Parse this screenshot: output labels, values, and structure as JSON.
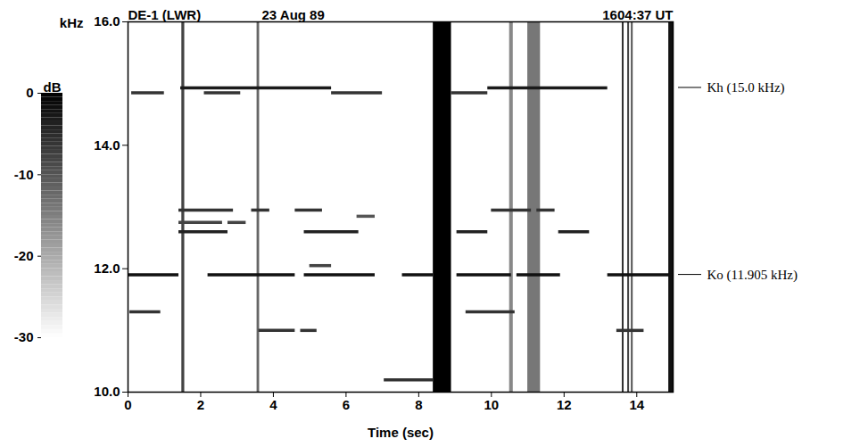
{
  "chart_data": {
    "type": "spectrogram",
    "title": "DE-1 (LWR)",
    "date": "23 Aug 89",
    "time": "1604:37 UT",
    "x_label": "Time (sec)",
    "y_label": "kHz",
    "xlim": [
      0,
      15
    ],
    "xticks": [
      0,
      2,
      4,
      6,
      8,
      10,
      12,
      14
    ],
    "ylim": [
      10,
      16
    ],
    "yticks": [
      {
        "value": 10,
        "label": "10.0"
      },
      {
        "value": 12,
        "label": "12.0"
      },
      {
        "value": 14,
        "label": "14.0"
      },
      {
        "value": 16,
        "label": "16.0"
      }
    ],
    "tones": [
      {
        "x0": 1.45,
        "x1": 5.6,
        "y": 14.93,
        "level": -3
      },
      {
        "x0": 9.9,
        "x1": 13.2,
        "y": 14.93,
        "level": -3
      },
      {
        "x0": 0.1,
        "x1": 1.0,
        "y": 14.85,
        "level": -6
      },
      {
        "x0": 2.1,
        "x1": 3.1,
        "y": 14.85,
        "level": -6
      },
      {
        "x0": 5.6,
        "x1": 7.0,
        "y": 14.85,
        "level": -6
      },
      {
        "x0": 8.9,
        "x1": 9.9,
        "y": 14.85,
        "level": -6
      },
      {
        "x0": 1.4,
        "x1": 2.9,
        "y": 12.95,
        "level": -6
      },
      {
        "x0": 3.4,
        "x1": 3.9,
        "y": 12.95,
        "level": -6
      },
      {
        "x0": 4.6,
        "x1": 5.35,
        "y": 12.95,
        "level": -6
      },
      {
        "x0": 10.0,
        "x1": 11.1,
        "y": 12.95,
        "level": -6
      },
      {
        "x0": 11.25,
        "x1": 11.75,
        "y": 12.95,
        "level": -6
      },
      {
        "x0": 6.3,
        "x1": 6.8,
        "y": 12.85,
        "level": -10
      },
      {
        "x0": 1.4,
        "x1": 2.6,
        "y": 12.75,
        "level": -8
      },
      {
        "x0": 2.75,
        "x1": 3.25,
        "y": 12.75,
        "level": -8
      },
      {
        "x0": 1.4,
        "x1": 2.75,
        "y": 12.6,
        "level": -4
      },
      {
        "x0": 4.85,
        "x1": 6.35,
        "y": 12.6,
        "level": -4
      },
      {
        "x0": 9.05,
        "x1": 9.9,
        "y": 12.6,
        "level": -4
      },
      {
        "x0": 11.85,
        "x1": 12.7,
        "y": 12.6,
        "level": -4
      },
      {
        "x0": 5.0,
        "x1": 5.6,
        "y": 12.05,
        "level": -8
      },
      {
        "x0": 0,
        "x1": 1.4,
        "y": 11.9,
        "level": -2
      },
      {
        "x0": 2.2,
        "x1": 4.6,
        "y": 11.9,
        "level": -2
      },
      {
        "x0": 4.85,
        "x1": 6.8,
        "y": 11.9,
        "level": -2
      },
      {
        "x0": 7.55,
        "x1": 8.4,
        "y": 11.9,
        "level": -2
      },
      {
        "x0": 9.05,
        "x1": 10.55,
        "y": 11.9,
        "level": -2
      },
      {
        "x0": 10.7,
        "x1": 11.9,
        "y": 11.9,
        "level": -2
      },
      {
        "x0": 13.2,
        "x1": 15,
        "y": 11.9,
        "level": -2
      },
      {
        "x0": 0.05,
        "x1": 0.9,
        "y": 11.3,
        "level": -6
      },
      {
        "x0": 9.3,
        "x1": 10.65,
        "y": 11.3,
        "level": -6
      },
      {
        "x0": 3.6,
        "x1": 4.6,
        "y": 11.0,
        "level": -6
      },
      {
        "x0": 4.75,
        "x1": 5.2,
        "y": 11.0,
        "level": -6
      },
      {
        "x0": 13.45,
        "x1": 14.2,
        "y": 11.0,
        "level": -6
      },
      {
        "x0": 7.05,
        "x1": 8.4,
        "y": 10.2,
        "level": -6
      }
    ],
    "bursts": [
      {
        "x0": 8.4,
        "x1": 8.9,
        "level": 0
      },
      {
        "x0": 1.48,
        "x1": 1.56,
        "level": -8
      },
      {
        "x0": 3.55,
        "x1": 3.62,
        "level": -12
      },
      {
        "x0": 10.5,
        "x1": 10.6,
        "level": -16
      },
      {
        "x0": 11.0,
        "x1": 11.35,
        "level": -14
      },
      {
        "x0": 13.6,
        "x1": 13.65,
        "level": -6
      },
      {
        "x0": 13.75,
        "x1": 13.8,
        "level": -8
      },
      {
        "x0": 13.85,
        "x1": 13.9,
        "level": -10
      },
      {
        "x0": 14.88,
        "x1": 15.0,
        "level": -2
      }
    ],
    "colorbar": {
      "label": "dB",
      "range": [
        -30,
        0
      ],
      "ticks": [
        0,
        -10,
        -20,
        -30
      ]
    },
    "annotations": [
      {
        "text": "Kh (15.0 kHz)",
        "y": 14.93
      },
      {
        "text": "Ko (11.905 kHz)",
        "y": 11.9
      }
    ]
  }
}
